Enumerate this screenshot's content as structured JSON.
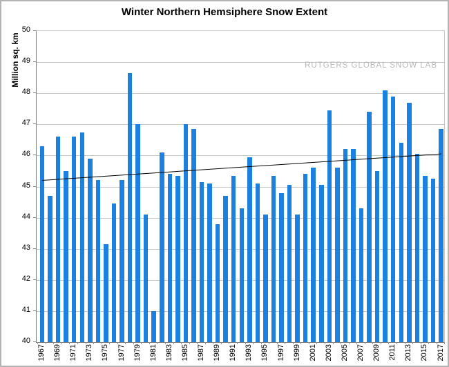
{
  "chart": {
    "title": "Winter Northern Hemsiphere Snow Extent",
    "ylabel": "Million sq. km",
    "watermark": "RUTGERS GLOBAL SNOW LAB"
  },
  "chart_data": {
    "type": "bar",
    "title": "Winter Northern Hemsiphere Snow Extent",
    "xlabel": "",
    "ylabel": "Million sq. km",
    "ylim": [
      40,
      50
    ],
    "ytick_step": 1,
    "xtick_label_step": 2,
    "grid": true,
    "legend": false,
    "bar_color": "#1b80e0",
    "axis_color": "#808080",
    "gridline_color": "#c8c8c8",
    "watermark": "RUTGERS GLOBAL SNOW LAB",
    "watermark_color": "#b9b9b9",
    "categories": [
      1967,
      1968,
      1969,
      1970,
      1971,
      1972,
      1973,
      1974,
      1975,
      1976,
      1977,
      1978,
      1979,
      1980,
      1981,
      1982,
      1983,
      1984,
      1985,
      1986,
      1987,
      1988,
      1989,
      1990,
      1991,
      1992,
      1993,
      1994,
      1995,
      1996,
      1997,
      1998,
      1999,
      2000,
      2001,
      2002,
      2003,
      2004,
      2005,
      2006,
      2007,
      2008,
      2009,
      2010,
      2011,
      2012,
      2013,
      2014,
      2015,
      2016,
      2017
    ],
    "values": [
      46.3,
      44.7,
      46.6,
      45.5,
      46.6,
      46.75,
      45.9,
      45.2,
      43.15,
      44.45,
      45.2,
      48.65,
      47.0,
      44.1,
      41.0,
      46.1,
      45.4,
      45.35,
      47.0,
      46.85,
      45.15,
      45.1,
      43.8,
      44.7,
      45.35,
      44.3,
      45.95,
      45.1,
      44.1,
      45.35,
      44.8,
      45.05,
      44.1,
      45.4,
      45.6,
      45.05,
      47.45,
      45.6,
      46.2,
      46.2,
      44.3,
      47.4,
      45.5,
      48.1,
      47.9,
      46.4,
      47.7,
      46.05,
      45.35,
      45.25,
      46.85
    ],
    "trend_line": {
      "start_year": 1967,
      "end_year": 2017,
      "start_value": 45.2,
      "end_value": 46.05,
      "color": "#000000"
    }
  }
}
